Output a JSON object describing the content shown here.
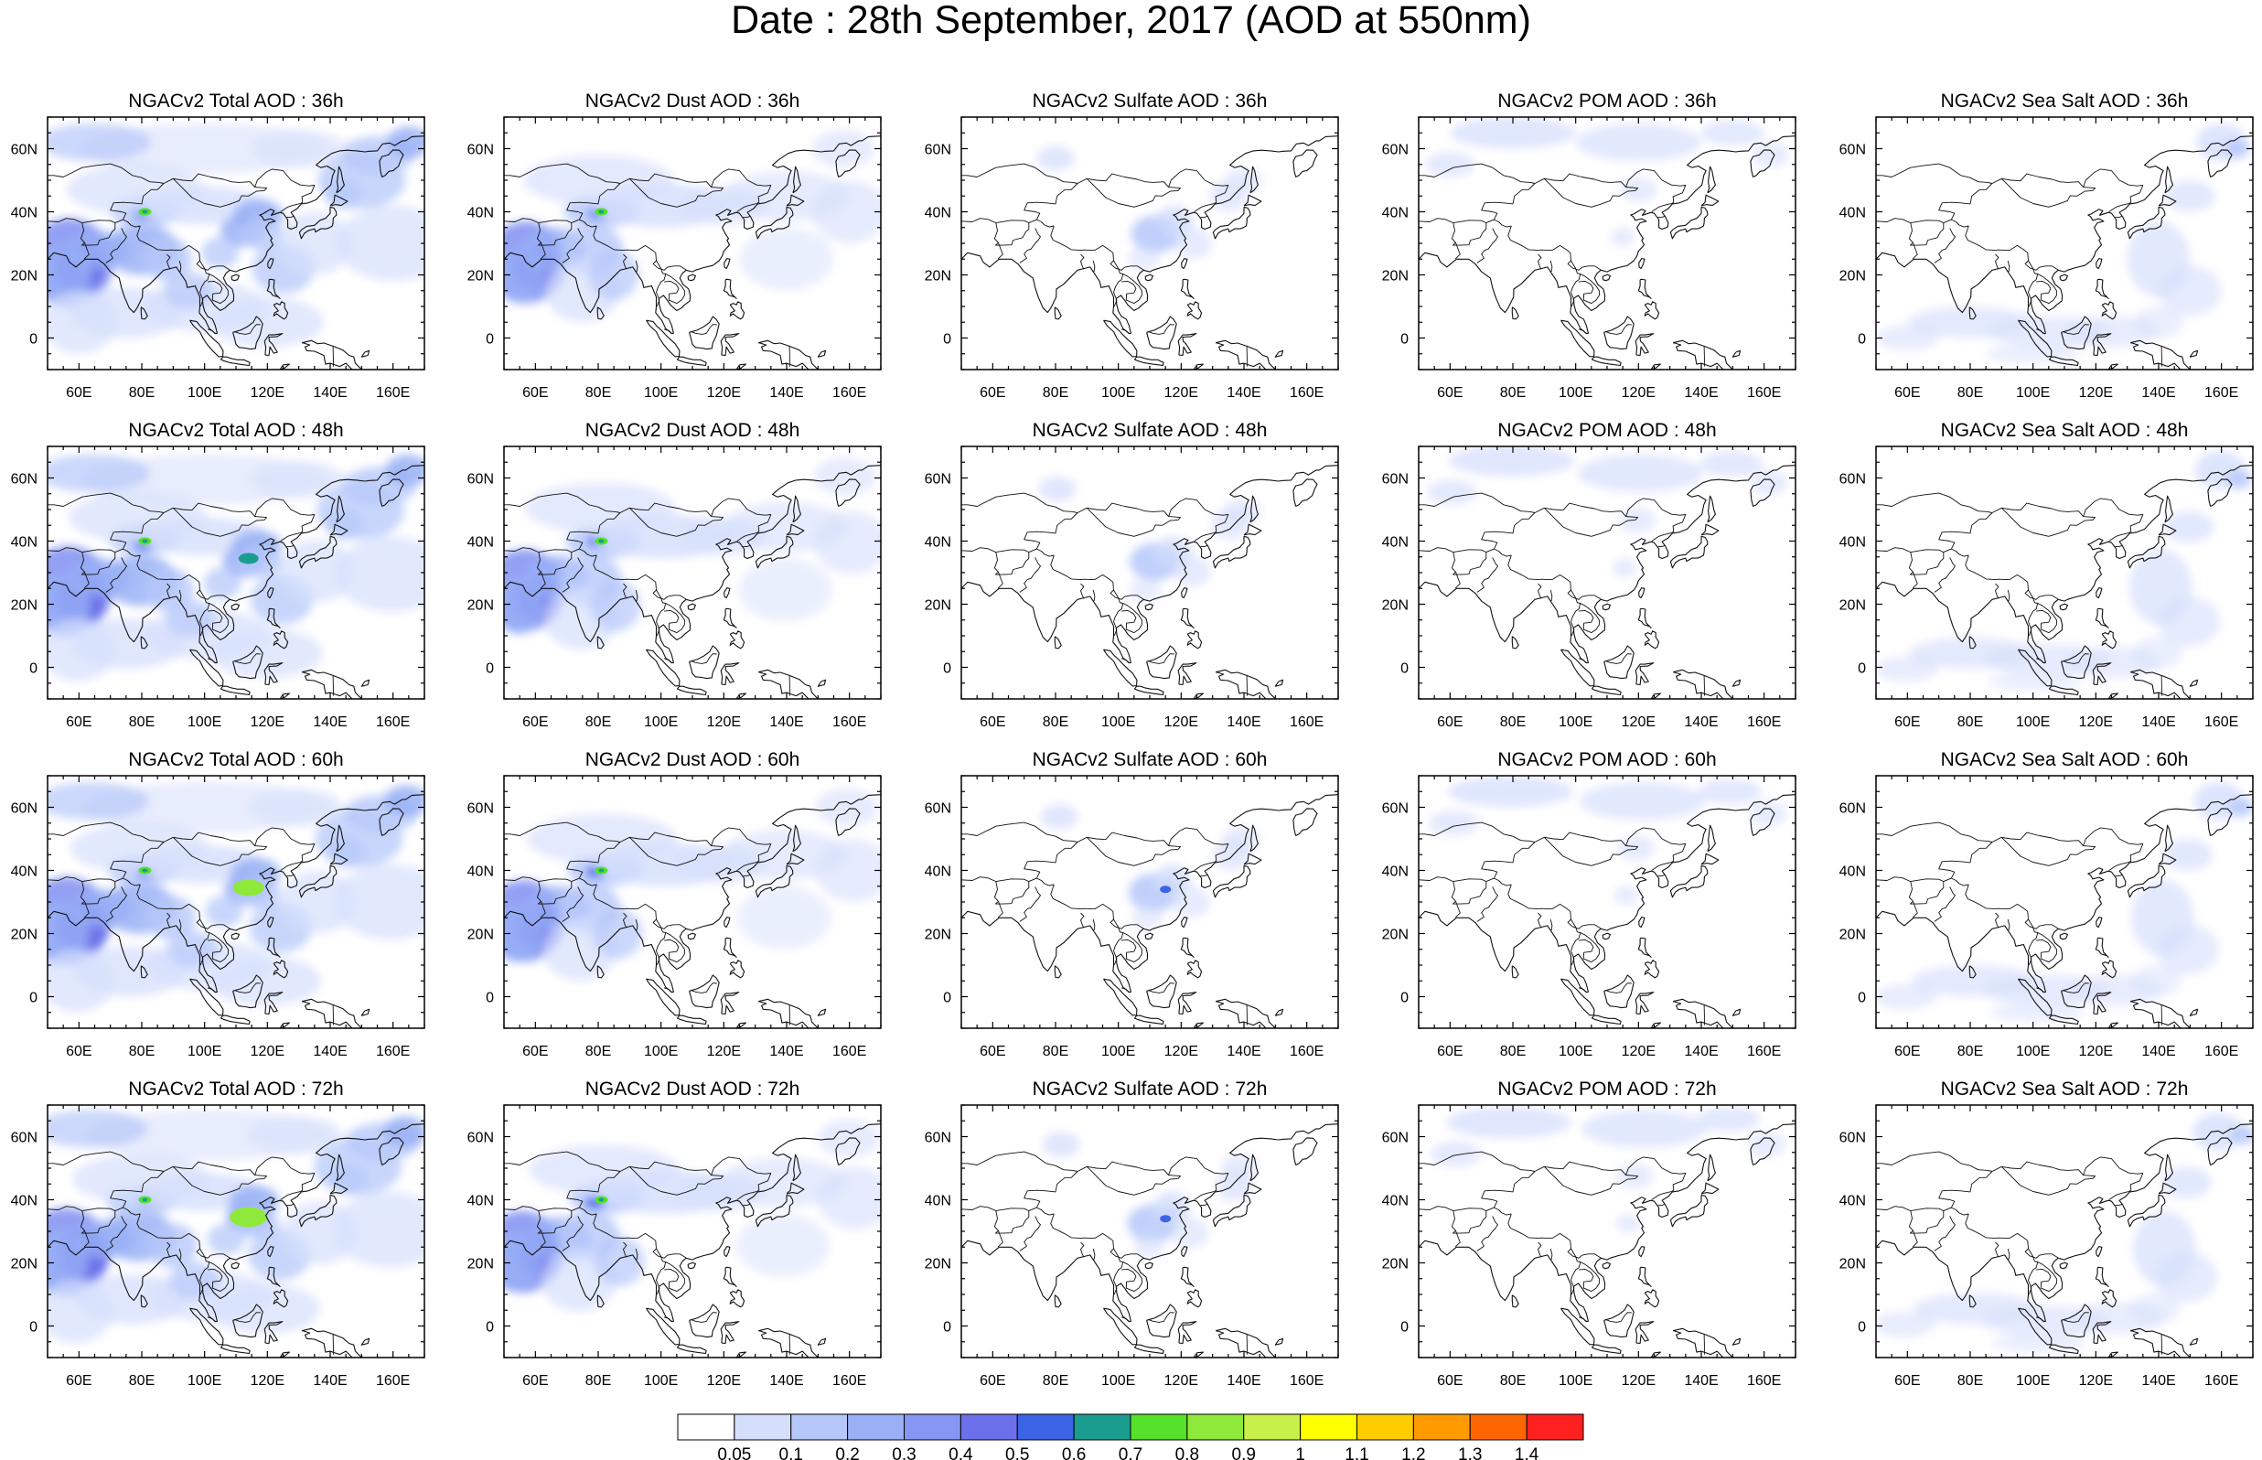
{
  "title": "Date : 28th September, 2017 (AOD at 550nm)",
  "panel_titles": [
    [
      "NGACv2 Total AOD : 36h",
      "NGACv2 Dust AOD : 36h",
      "NGACv2 Sulfate AOD : 36h",
      "NGACv2 POM AOD : 36h",
      "NGACv2 Sea Salt AOD : 36h"
    ],
    [
      "NGACv2 Total AOD : 48h",
      "NGACv2 Dust AOD : 48h",
      "NGACv2 Sulfate AOD : 48h",
      "NGACv2 POM AOD : 48h",
      "NGACv2 Sea Salt AOD : 48h"
    ],
    [
      "NGACv2 Total AOD : 60h",
      "NGACv2 Dust AOD : 60h",
      "NGACv2 Sulfate AOD : 60h",
      "NGACv2 POM AOD : 60h",
      "NGACv2 Sea Salt AOD : 60h"
    ],
    [
      "NGACv2 Total AOD : 72h",
      "NGACv2 Dust AOD : 72h",
      "NGACv2 Sulfate AOD : 72h",
      "NGACv2 POM AOD : 72h",
      "NGACv2 Sea Salt  AOD : 72h"
    ]
  ],
  "map_extent": {
    "lon": [
      50,
      170
    ],
    "lat": [
      -10,
      70
    ]
  },
  "lon_ticks": [
    "60E",
    "80E",
    "100E",
    "120E",
    "140E",
    "160E"
  ],
  "lat_ticks": [
    "60N",
    "40N",
    "20N",
    "0"
  ],
  "colorbar": {
    "labels": [
      "0.05",
      "0.1",
      "0.2",
      "0.3",
      "0.4",
      "0.5",
      "0.6",
      "0.7",
      "0.8",
      "0.9",
      "1",
      "1.1",
      "1.2",
      "1.3",
      "1.4"
    ],
    "colors": [
      "#ffffff",
      "#d5dffc",
      "#b6c8fa",
      "#99b0f6",
      "#8796f2",
      "#6c70ea",
      "#3d64e6",
      "#1a9c8f",
      "#55e12a",
      "#8fe93a",
      "#c8f04a",
      "#ffff00",
      "#ffcc00",
      "#ff9a00",
      "#ff6600",
      "#ff2020"
    ]
  }
}
